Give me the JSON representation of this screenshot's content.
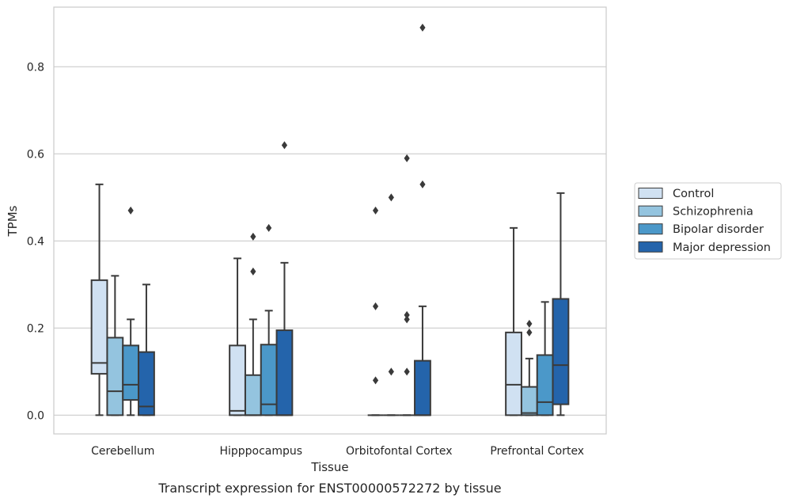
{
  "caption": "Transcript expression for ENST00000572272 by tissue",
  "colors": {
    "Control": "#d0e1f2",
    "Schizophrenia": "#94c4df",
    "Bipolar disorder": "#4b98c9",
    "Major depression": "#2464ab",
    "line": "#3a3a3a",
    "grid": "#cccccc"
  },
  "chart_data": {
    "type": "box",
    "xlabel": "Tissue",
    "ylabel": "TPMs",
    "ylim": [
      -0.043,
      0.937
    ],
    "yticks": [
      "0.0",
      "0.2",
      "0.4",
      "0.6",
      "0.8"
    ],
    "categories": [
      "Cerebellum",
      "Hipppocampus",
      "Orbitofontal Cortex",
      "Prefrontal Cortex"
    ],
    "legend": {
      "position": "right",
      "entries": [
        "Control",
        "Schizophrenia",
        "Bipolar disorder",
        "Major depression"
      ]
    },
    "grid": "horizontal",
    "series": [
      {
        "name": "Control",
        "boxes": [
          {
            "whislo": 0,
            "q1": 0.095,
            "med": 0.12,
            "q3": 0.31,
            "whishi": 0.53,
            "fliers": []
          },
          {
            "whislo": 0,
            "q1": 0,
            "med": 0.01,
            "q3": 0.16,
            "whishi": 0.36,
            "fliers": []
          },
          {
            "whislo": 0,
            "q1": 0,
            "med": 0,
            "q3": 0,
            "whishi": 0,
            "fliers": [
              0.08,
              0.25,
              0.47
            ]
          },
          {
            "whislo": 0,
            "q1": 0,
            "med": 0.07,
            "q3": 0.19,
            "whishi": 0.43,
            "fliers": []
          }
        ]
      },
      {
        "name": "Schizophrenia",
        "boxes": [
          {
            "whislo": 0,
            "q1": 0,
            "med": 0.055,
            "q3": 0.178,
            "whishi": 0.32,
            "fliers": []
          },
          {
            "whislo": 0,
            "q1": 0,
            "med": 0,
            "q3": 0.092,
            "whishi": 0.22,
            "fliers": [
              0.33,
              0.41
            ]
          },
          {
            "whislo": 0,
            "q1": 0,
            "med": 0,
            "q3": 0,
            "whishi": 0,
            "fliers": [
              0.1,
              0.5
            ]
          },
          {
            "whislo": 0,
            "q1": 0,
            "med": 0.005,
            "q3": 0.065,
            "whishi": 0.13,
            "fliers": [
              0.19,
              0.21
            ]
          }
        ]
      },
      {
        "name": "Bipolar disorder",
        "boxes": [
          {
            "whislo": 0,
            "q1": 0.035,
            "med": 0.07,
            "q3": 0.16,
            "whishi": 0.22,
            "fliers": [
              0.47
            ]
          },
          {
            "whislo": 0,
            "q1": 0,
            "med": 0.025,
            "q3": 0.162,
            "whishi": 0.24,
            "fliers": [
              0.43
            ]
          },
          {
            "whislo": 0,
            "q1": 0,
            "med": 0,
            "q3": 0,
            "whishi": 0,
            "fliers": [
              0.1,
              0.22,
              0.23,
              0.59
            ]
          },
          {
            "whislo": 0,
            "q1": 0,
            "med": 0.03,
            "q3": 0.138,
            "whishi": 0.26,
            "fliers": []
          }
        ]
      },
      {
        "name": "Major depression",
        "boxes": [
          {
            "whislo": 0,
            "q1": 0,
            "med": 0.02,
            "q3": 0.145,
            "whishi": 0.3,
            "fliers": []
          },
          {
            "whislo": 0,
            "q1": 0,
            "med": 0,
            "q3": 0.195,
            "whishi": 0.35,
            "fliers": [
              0.62
            ]
          },
          {
            "whislo": 0,
            "q1": 0,
            "med": 0,
            "q3": 0.125,
            "whishi": 0.25,
            "fliers": [
              0.53,
              0.89
            ]
          },
          {
            "whislo": 0,
            "q1": 0.025,
            "med": 0.115,
            "q3": 0.267,
            "whishi": 0.51,
            "fliers": []
          }
        ]
      }
    ]
  }
}
